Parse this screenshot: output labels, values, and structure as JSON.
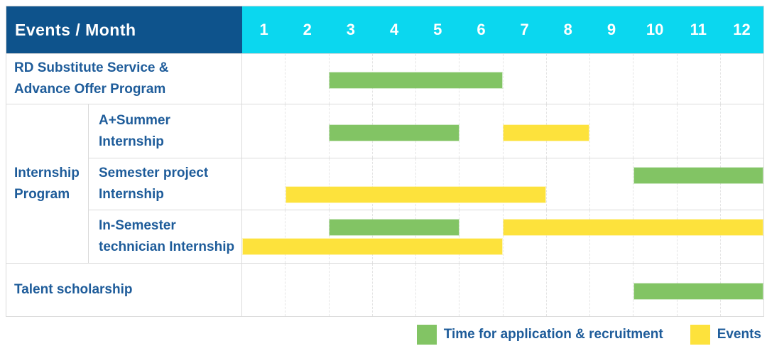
{
  "header": {
    "title": "Events / Month",
    "months": [
      "1",
      "2",
      "3",
      "4",
      "5",
      "6",
      "7",
      "8",
      "9",
      "10",
      "11",
      "12"
    ]
  },
  "colors": {
    "header_bg": "#0E538C",
    "month_header_bg": "#0BD7EF",
    "recruitment_green": "#82C464",
    "event_yellow": "#FDE23C",
    "label_text": "#1E5C9A",
    "header_text": "#FFFFFF",
    "grid_line": "#DBDBDB"
  },
  "chart_data": {
    "type": "table",
    "subtype": "gantt-timeline",
    "title": "Events / Month",
    "x_unit": "month",
    "x_range": [
      1,
      12
    ],
    "grid": "dashed-vertical-month-lines",
    "legend_position": "bottom-right",
    "group_label": "Internship\nProgram",
    "rows": [
      {
        "label": "RD Substitute Service &\nAdvance Offer Program",
        "group": null,
        "bars": [
          {
            "kind": "application_recruitment",
            "start_month": 3,
            "end_month": 6,
            "lane": "center"
          }
        ]
      },
      {
        "label": "A+Summer\nInternship",
        "group": "Internship Program",
        "bars": [
          {
            "kind": "application_recruitment",
            "start_month": 3,
            "end_month": 5,
            "lane": "center"
          },
          {
            "kind": "event",
            "start_month": 7,
            "end_month": 8,
            "lane": "center"
          }
        ]
      },
      {
        "label": "Semester project\nInternship",
        "group": "Internship Program",
        "bars": [
          {
            "kind": "application_recruitment",
            "start_month": 10,
            "end_month": 12,
            "lane": "top"
          },
          {
            "kind": "event",
            "start_month": 2,
            "end_month": 7,
            "lane": "bottom"
          }
        ]
      },
      {
        "label": "In-Semester\ntechnician Internship",
        "group": "Internship Program",
        "bars": [
          {
            "kind": "application_recruitment",
            "start_month": 3,
            "end_month": 5,
            "lane": "top"
          },
          {
            "kind": "event",
            "start_month": 7,
            "end_month": 12,
            "lane": "top"
          },
          {
            "kind": "event",
            "start_month": 1,
            "end_month": 6,
            "lane": "bottom"
          }
        ]
      },
      {
        "label": "Talent scholarship",
        "group": null,
        "bars": [
          {
            "kind": "application_recruitment",
            "start_month": 10,
            "end_month": 12,
            "lane": "center"
          }
        ]
      }
    ],
    "legend": [
      {
        "label": "Time for application & recruitment",
        "kind": "application_recruitment",
        "color": "#82C464"
      },
      {
        "label": "Events",
        "kind": "event",
        "color": "#FDE23C"
      }
    ]
  }
}
